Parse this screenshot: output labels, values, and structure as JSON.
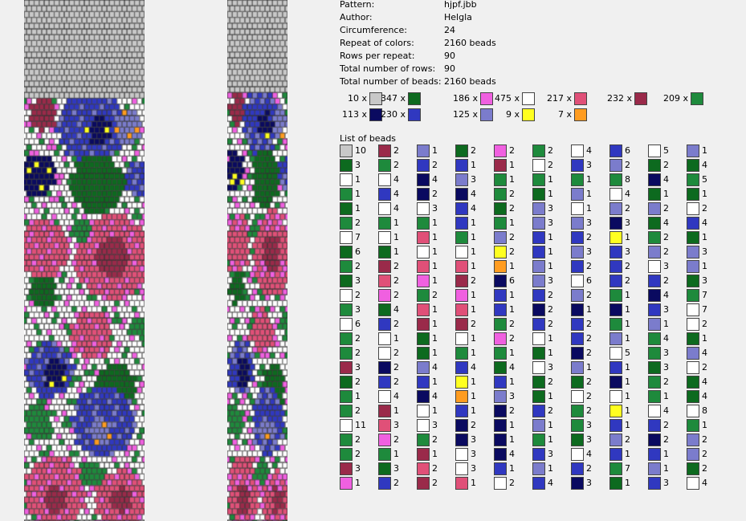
{
  "palette": {
    "gray": "#c8c8c8",
    "maroon": "#9a2a4a",
    "periwinkle": "#7b7ccc",
    "dkgreen": "#0d6a1f",
    "pink": "#f060e0",
    "green": "#1e8a3c",
    "white": "#ffffff",
    "blue": "#3038c0",
    "navy": "#0a0a60",
    "rose": "#e05078",
    "yellow": "#ffff20",
    "orange": "#ff9c20"
  },
  "info": {
    "rows": [
      {
        "label": "Pattern:",
        "value": "hjpf.jbb"
      },
      {
        "label": "Author:",
        "value": "Helgla"
      },
      {
        "label": "Circumference:",
        "value": "24"
      },
      {
        "label": "Repeat of colors:",
        "value": "2160 beads"
      },
      {
        "label": "Rows per repeat:",
        "value": "90"
      },
      {
        "label": "Total number of rows:",
        "value": "90"
      },
      {
        "label": "Total number of beads:",
        "value": "2160 beads"
      }
    ]
  },
  "legend": [
    {
      "count": "10 x",
      "color": "gray"
    },
    {
      "count": "347 x",
      "color": "dkgreen"
    },
    {
      "count": "186 x",
      "color": "pink"
    },
    {
      "count": "475 x",
      "color": "white"
    },
    {
      "count": "217 x",
      "color": "rose"
    },
    {
      "count": "232 x",
      "color": "maroon"
    },
    {
      "count": "209 x",
      "color": "green"
    },
    {
      "count": "113 x",
      "color": "navy"
    },
    {
      "count": "230 x",
      "color": "blue"
    },
    {
      "count": "125 x",
      "color": "periwinkle"
    },
    {
      "count": "9 x",
      "color": "yellow"
    },
    {
      "count": "7 x",
      "color": "orange"
    }
  ],
  "bead_list_title": "List of beads",
  "bead_list": [
    [
      [
        "gray",
        "10"
      ],
      [
        "dkgreen",
        "3"
      ],
      [
        "white",
        "1"
      ],
      [
        "green",
        "1"
      ],
      [
        "dkgreen",
        "1"
      ],
      [
        "green",
        "2"
      ],
      [
        "white",
        "7"
      ],
      [
        "dkgreen",
        "6"
      ],
      [
        "green",
        "2"
      ],
      [
        "dkgreen",
        "3"
      ],
      [
        "white",
        "2"
      ],
      [
        "green",
        "3"
      ],
      [
        "white",
        "6"
      ],
      [
        "green",
        "2"
      ],
      [
        "green",
        "2"
      ],
      [
        "maroon",
        "3"
      ],
      [
        "dkgreen",
        "2"
      ],
      [
        "green",
        "1"
      ],
      [
        "green",
        "2"
      ],
      [
        "white",
        "11"
      ],
      [
        "green",
        "2"
      ],
      [
        "green",
        "2"
      ],
      [
        "maroon",
        "3"
      ],
      [
        "pink",
        "1"
      ]
    ],
    [
      [
        "maroon",
        "2"
      ],
      [
        "green",
        "2"
      ],
      [
        "white",
        "4"
      ],
      [
        "blue",
        "4"
      ],
      [
        "white",
        "4"
      ],
      [
        "green",
        "1"
      ],
      [
        "white",
        "1"
      ],
      [
        "dkgreen",
        "1"
      ],
      [
        "maroon",
        "2"
      ],
      [
        "rose",
        "2"
      ],
      [
        "pink",
        "2"
      ],
      [
        "dkgreen",
        "4"
      ],
      [
        "blue",
        "2"
      ],
      [
        "white",
        "1"
      ],
      [
        "white",
        "2"
      ],
      [
        "navy",
        "2"
      ],
      [
        "blue",
        "2"
      ],
      [
        "white",
        "4"
      ],
      [
        "maroon",
        "1"
      ],
      [
        "rose",
        "3"
      ],
      [
        "pink",
        "2"
      ],
      [
        "green",
        "1"
      ],
      [
        "dkgreen",
        "3"
      ],
      [
        "blue",
        "2"
      ]
    ],
    [
      [
        "periwinkle",
        "1"
      ],
      [
        "blue",
        "2"
      ],
      [
        "navy",
        "4"
      ],
      [
        "navy",
        "2"
      ],
      [
        "white",
        "3"
      ],
      [
        "green",
        "1"
      ],
      [
        "rose",
        "1"
      ],
      [
        "white",
        "1"
      ],
      [
        "rose",
        "1"
      ],
      [
        "pink",
        "1"
      ],
      [
        "green",
        "2"
      ],
      [
        "rose",
        "1"
      ],
      [
        "maroon",
        "1"
      ],
      [
        "dkgreen",
        "1"
      ],
      [
        "dkgreen",
        "1"
      ],
      [
        "periwinkle",
        "4"
      ],
      [
        "blue",
        "1"
      ],
      [
        "navy",
        "4"
      ],
      [
        "white",
        "1"
      ],
      [
        "white",
        "3"
      ],
      [
        "green",
        "2"
      ],
      [
        "maroon",
        "1"
      ],
      [
        "rose",
        "2"
      ],
      [
        "maroon",
        "2"
      ]
    ],
    [
      [
        "dkgreen",
        "2"
      ],
      [
        "blue",
        "1"
      ],
      [
        "periwinkle",
        "3"
      ],
      [
        "navy",
        "4"
      ],
      [
        "blue",
        "4"
      ],
      [
        "blue",
        "1"
      ],
      [
        "green",
        "1"
      ],
      [
        "white",
        "1"
      ],
      [
        "rose",
        "1"
      ],
      [
        "maroon",
        "2"
      ],
      [
        "pink",
        "1"
      ],
      [
        "rose",
        "1"
      ],
      [
        "maroon",
        "2"
      ],
      [
        "white",
        "1"
      ],
      [
        "green",
        "1"
      ],
      [
        "blue",
        "4"
      ],
      [
        "yellow",
        "1"
      ],
      [
        "orange",
        "1"
      ],
      [
        "blue",
        "1"
      ],
      [
        "navy",
        "2"
      ],
      [
        "navy",
        "3"
      ],
      [
        "white",
        "3"
      ],
      [
        "white",
        "3"
      ],
      [
        "rose",
        "1"
      ]
    ],
    [
      [
        "pink",
        "2"
      ],
      [
        "maroon",
        "1"
      ],
      [
        "green",
        "1"
      ],
      [
        "green",
        "2"
      ],
      [
        "dkgreen",
        "2"
      ],
      [
        "green",
        "1"
      ],
      [
        "periwinkle",
        "2"
      ],
      [
        "yellow",
        "2"
      ],
      [
        "orange",
        "1"
      ],
      [
        "navy",
        "6"
      ],
      [
        "blue",
        "1"
      ],
      [
        "blue",
        "1"
      ],
      [
        "green",
        "2"
      ],
      [
        "pink",
        "2"
      ],
      [
        "green",
        "1"
      ],
      [
        "dkgreen",
        "4"
      ],
      [
        "blue",
        "1"
      ],
      [
        "periwinkle",
        "3"
      ],
      [
        "navy",
        "2"
      ],
      [
        "navy",
        "1"
      ],
      [
        "navy",
        "1"
      ],
      [
        "navy",
        "4"
      ],
      [
        "blue",
        "1"
      ],
      [
        "white",
        "2"
      ]
    ],
    [
      [
        "green",
        "2"
      ],
      [
        "white",
        "2"
      ],
      [
        "green",
        "1"
      ],
      [
        "dkgreen",
        "1"
      ],
      [
        "periwinkle",
        "3"
      ],
      [
        "periwinkle",
        "3"
      ],
      [
        "blue",
        "1"
      ],
      [
        "blue",
        "1"
      ],
      [
        "periwinkle",
        "1"
      ],
      [
        "periwinkle",
        "3"
      ],
      [
        "blue",
        "2"
      ],
      [
        "navy",
        "2"
      ],
      [
        "blue",
        "2"
      ],
      [
        "white",
        "1"
      ],
      [
        "dkgreen",
        "1"
      ],
      [
        "white",
        "3"
      ],
      [
        "dkgreen",
        "2"
      ],
      [
        "dkgreen",
        "1"
      ],
      [
        "blue",
        "2"
      ],
      [
        "periwinkle",
        "1"
      ],
      [
        "green",
        "1"
      ],
      [
        "blue",
        "3"
      ],
      [
        "periwinkle",
        "1"
      ],
      [
        "blue",
        "4"
      ]
    ],
    [
      [
        "white",
        "4"
      ],
      [
        "blue",
        "3"
      ],
      [
        "green",
        "1"
      ],
      [
        "periwinkle",
        "1"
      ],
      [
        "white",
        "1"
      ],
      [
        "periwinkle",
        "3"
      ],
      [
        "blue",
        "2"
      ],
      [
        "periwinkle",
        "3"
      ],
      [
        "blue",
        "2"
      ],
      [
        "white",
        "6"
      ],
      [
        "periwinkle",
        "2"
      ],
      [
        "navy",
        "1"
      ],
      [
        "blue",
        "2"
      ],
      [
        "blue",
        "2"
      ],
      [
        "navy",
        "2"
      ],
      [
        "periwinkle",
        "1"
      ],
      [
        "dkgreen",
        "2"
      ],
      [
        "white",
        "2"
      ],
      [
        "green",
        "2"
      ],
      [
        "green",
        "3"
      ],
      [
        "dkgreen",
        "3"
      ],
      [
        "white",
        "4"
      ],
      [
        "blue",
        "2"
      ],
      [
        "navy",
        "3"
      ]
    ],
    [
      [
        "blue",
        "6"
      ],
      [
        "periwinkle",
        "2"
      ],
      [
        "green",
        "8"
      ],
      [
        "white",
        "4"
      ],
      [
        "periwinkle",
        "2"
      ],
      [
        "navy",
        "3"
      ],
      [
        "yellow",
        "1"
      ],
      [
        "blue",
        "3"
      ],
      [
        "blue",
        "2"
      ],
      [
        "blue",
        "2"
      ],
      [
        "green",
        "1"
      ],
      [
        "navy",
        "1"
      ],
      [
        "green",
        "1"
      ],
      [
        "periwinkle",
        "1"
      ],
      [
        "white",
        "5"
      ],
      [
        "blue",
        "1"
      ],
      [
        "navy",
        "1"
      ],
      [
        "white",
        "1"
      ],
      [
        "yellow",
        "1"
      ],
      [
        "blue",
        "1"
      ],
      [
        "periwinkle",
        "2"
      ],
      [
        "blue",
        "1"
      ],
      [
        "green",
        "7"
      ],
      [
        "dkgreen",
        "1"
      ]
    ],
    [
      [
        "white",
        "5"
      ],
      [
        "dkgreen",
        "2"
      ],
      [
        "navy",
        "4"
      ],
      [
        "dkgreen",
        "1"
      ],
      [
        "periwinkle",
        "2"
      ],
      [
        "dkgreen",
        "4"
      ],
      [
        "green",
        "2"
      ],
      [
        "periwinkle",
        "2"
      ],
      [
        "white",
        "3"
      ],
      [
        "blue",
        "2"
      ],
      [
        "navy",
        "4"
      ],
      [
        "blue",
        "3"
      ],
      [
        "periwinkle",
        "1"
      ],
      [
        "green",
        "4"
      ],
      [
        "green",
        "3"
      ],
      [
        "dkgreen",
        "3"
      ],
      [
        "green",
        "2"
      ],
      [
        "green",
        "1"
      ],
      [
        "white",
        "4"
      ],
      [
        "blue",
        "2"
      ],
      [
        "navy",
        "2"
      ],
      [
        "blue",
        "1"
      ],
      [
        "periwinkle",
        "1"
      ],
      [
        "blue",
        "3"
      ]
    ],
    [
      [
        "periwinkle",
        "1"
      ],
      [
        "dkgreen",
        "4"
      ],
      [
        "green",
        "5"
      ],
      [
        "dkgreen",
        "1"
      ],
      [
        "white",
        "2"
      ],
      [
        "blue",
        "4"
      ],
      [
        "dkgreen",
        "1"
      ],
      [
        "periwinkle",
        "3"
      ],
      [
        "periwinkle",
        "1"
      ],
      [
        "dkgreen",
        "3"
      ],
      [
        "green",
        "7"
      ],
      [
        "white",
        "7"
      ],
      [
        "white",
        "2"
      ],
      [
        "dkgreen",
        "1"
      ],
      [
        "periwinkle",
        "4"
      ],
      [
        "white",
        "2"
      ],
      [
        "dkgreen",
        "4"
      ],
      [
        "dkgreen",
        "4"
      ],
      [
        "white",
        "8"
      ],
      [
        "green",
        "1"
      ],
      [
        "periwinkle",
        "2"
      ],
      [
        "periwinkle",
        "2"
      ],
      [
        "dkgreen",
        "2"
      ],
      [
        "white",
        "4"
      ]
    ]
  ]
}
